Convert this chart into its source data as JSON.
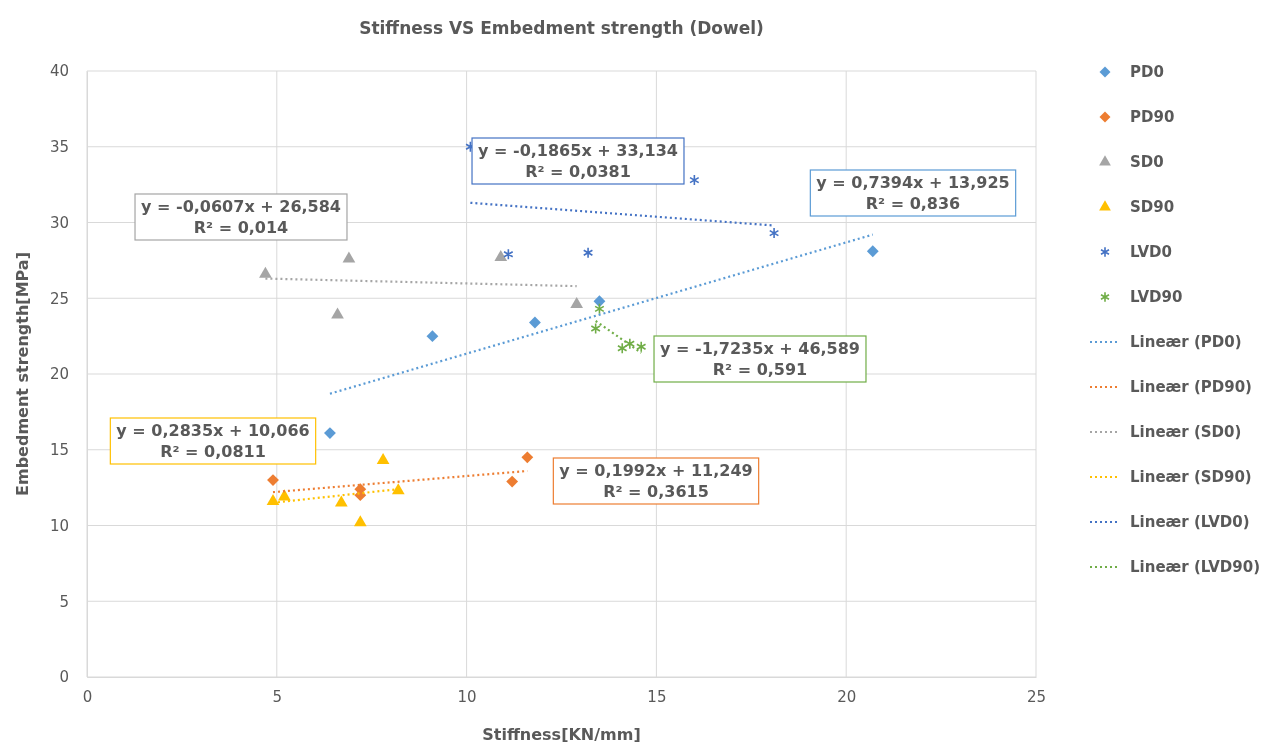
{
  "chart_data": {
    "type": "scatter",
    "title": "Stiffness VS Embedment strength (Dowel)",
    "xlabel": "Stiffness[KN/mm]",
    "ylabel": "Embedment strength[MPa]",
    "xlim": [
      0,
      25
    ],
    "xticks": [
      0,
      5,
      10,
      15,
      20,
      25
    ],
    "ylim": [
      0,
      40
    ],
    "yticks": [
      0,
      5,
      10,
      15,
      20,
      25,
      30,
      35,
      40
    ],
    "grid": true,
    "legend": "right",
    "series": [
      {
        "name": "PD0",
        "color": "#5b9bd5",
        "marker": "diamond",
        "x": [
          6.4,
          9.1,
          11.8,
          13.5,
          20.7
        ],
        "values": [
          16.1,
          22.5,
          23.4,
          24.8,
          28.1
        ]
      },
      {
        "name": "PD90",
        "color": "#ed7d31",
        "marker": "diamond",
        "x": [
          4.9,
          7.2,
          7.2,
          11.2,
          11.6
        ],
        "values": [
          13.0,
          12.4,
          12.0,
          12.9,
          14.5
        ]
      },
      {
        "name": "SD0",
        "color": "#a5a5a5",
        "marker": "triangle",
        "x": [
          4.7,
          6.9,
          6.6,
          10.9,
          12.9
        ],
        "values": [
          26.6,
          27.6,
          23.9,
          27.7,
          24.6
        ]
      },
      {
        "name": "SD90",
        "color": "#ffc000",
        "marker": "triangle",
        "x": [
          4.9,
          5.2,
          6.7,
          7.2,
          7.8,
          8.2
        ],
        "values": [
          11.6,
          11.9,
          11.5,
          10.2,
          14.3,
          12.3
        ]
      },
      {
        "name": "LVD0",
        "color": "#4472c4",
        "marker": "cross",
        "x": [
          10.1,
          11.1,
          13.2,
          16.0,
          18.1
        ],
        "values": [
          35.0,
          27.9,
          28.0,
          32.8,
          29.3
        ]
      },
      {
        "name": "LVD90",
        "color": "#70ad47",
        "marker": "cross",
        "x": [
          13.5,
          13.4,
          14.1,
          14.3,
          14.6
        ],
        "values": [
          24.3,
          23.0,
          21.7,
          22.0,
          21.8
        ]
      },
      {
        "name": "Lineær (PD0)",
        "type": "line",
        "color": "#5b9bd5",
        "marker": "none",
        "line_style": "dotted",
        "x": [
          6.4,
          20.7
        ],
        "values": [
          18.7,
          29.2
        ]
      },
      {
        "name": "Lineær (PD90)",
        "type": "line",
        "color": "#ed7d31",
        "marker": "none",
        "line_style": "dotted",
        "x": [
          4.9,
          11.6
        ],
        "values": [
          12.2,
          13.6
        ]
      },
      {
        "name": "Lineær (SD0)",
        "type": "line",
        "color": "#a5a5a5",
        "marker": "none",
        "line_style": "dotted",
        "x": [
          4.7,
          12.9
        ],
        "values": [
          26.3,
          25.8
        ]
      },
      {
        "name": "Lineær (SD90)",
        "type": "line",
        "color": "#ffc000",
        "marker": "none",
        "line_style": "dotted",
        "x": [
          4.9,
          8.2
        ],
        "values": [
          11.5,
          12.4
        ]
      },
      {
        "name": "Lineær (LVD0)",
        "type": "line",
        "color": "#4472c4",
        "marker": "none",
        "line_style": "dotted",
        "x": [
          10.1,
          18.1
        ],
        "values": [
          31.3,
          29.8
        ]
      },
      {
        "name": "Lineær (LVD90)",
        "type": "line",
        "color": "#70ad47",
        "marker": "none",
        "line_style": "dotted",
        "x": [
          13.4,
          14.6
        ],
        "values": [
          23.5,
          21.4
        ]
      }
    ],
    "annotations": [
      "y = 0,7394x + 13,925\nR² = 0,836",
      "y = 0,1992x + 11,249\nR² = 0,3615",
      "y = -0,0607x + 26,584\nR² = 0,014",
      "y = 0,2835x + 10,066\nR² = 0,0811",
      "y = -0,1865x + 33,134\nR² = 0,0381",
      "y = -1,7235x + 46,589\nR² = 0,591"
    ]
  }
}
